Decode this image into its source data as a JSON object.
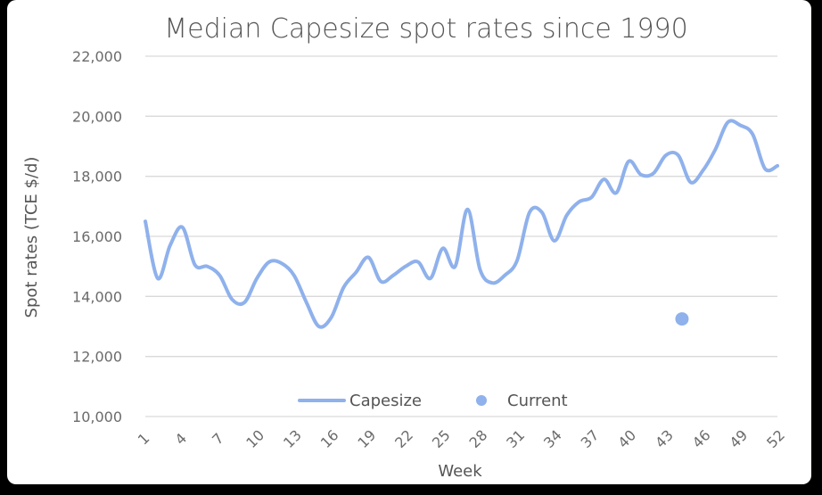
{
  "chart_data": {
    "type": "line",
    "title": "Median Capesize spot rates since 1990",
    "xlabel": "Week",
    "ylabel": "Spot rates (TCE $/d)",
    "ylim": [
      10000,
      22000
    ],
    "yticks": [
      10000,
      12000,
      14000,
      16000,
      18000,
      20000,
      22000
    ],
    "ytick_labels": [
      "10,000",
      "12,000",
      "14,000",
      "16,000",
      "18,000",
      "20,000",
      "22,000"
    ],
    "xticks": [
      "1",
      "4",
      "7",
      "10",
      "13",
      "16",
      "19",
      "22",
      "25",
      "28",
      "31",
      "34",
      "37",
      "40",
      "43",
      "46",
      "49",
      "52"
    ],
    "grid": true,
    "legend_position": "bottom",
    "series": [
      {
        "name": "Capesize",
        "color": "#8fb1ec",
        "x": [
          1,
          2,
          3,
          4,
          5,
          6,
          7,
          8,
          9,
          10,
          11,
          12,
          13,
          14,
          15,
          16,
          17,
          18,
          19,
          20,
          21,
          22,
          23,
          24,
          25,
          26,
          27,
          28,
          29,
          30,
          31,
          32,
          33,
          34,
          35,
          36,
          37,
          38,
          39,
          40,
          41,
          42,
          43,
          44,
          45,
          46,
          47,
          48,
          49,
          50,
          51,
          52
        ],
        "values": [
          16500,
          14600,
          15700,
          16300,
          15050,
          15000,
          14700,
          13900,
          13800,
          14600,
          15150,
          15100,
          14700,
          13800,
          13000,
          13300,
          14300,
          14800,
          15300,
          14500,
          14700,
          15000,
          15150,
          14600,
          15600,
          15000,
          16900,
          14900,
          14450,
          14700,
          15200,
          16800,
          16800,
          15850,
          16700,
          17150,
          17300,
          17900,
          17450,
          18500,
          18050,
          18100,
          18700,
          18700,
          17800,
          18200,
          18900,
          19800,
          19700,
          19400,
          18250,
          18350
        ]
      },
      {
        "name": "Current",
        "color": "#8fb1ec",
        "x": [
          44.3
        ],
        "values": [
          13250
        ]
      }
    ]
  }
}
